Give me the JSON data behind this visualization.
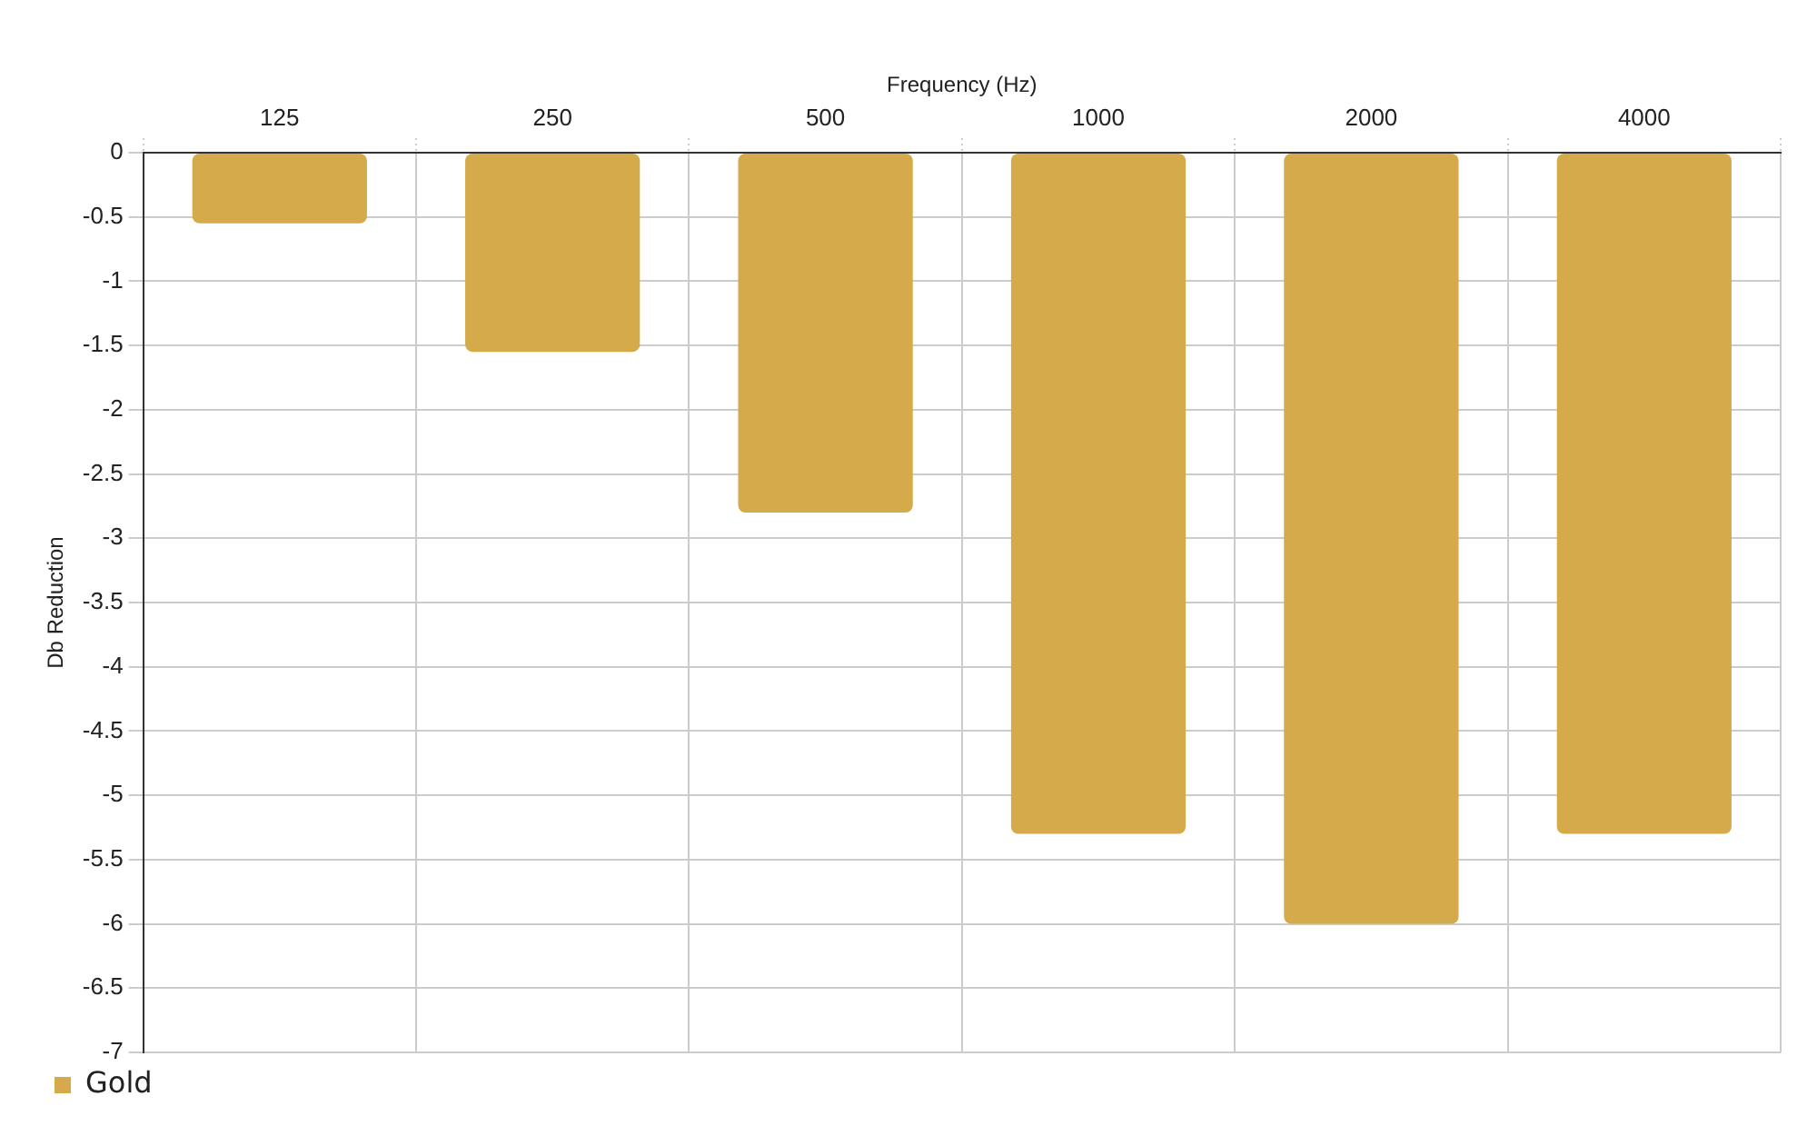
{
  "chart_data": {
    "type": "bar",
    "xlabel": "Frequency (Hz)",
    "ylabel": "Db Reduction",
    "categories": [
      "125",
      "250",
      "500",
      "1000",
      "2000",
      "4000"
    ],
    "series": [
      {
        "name": "Gold",
        "color": "#d4aa4a",
        "values": [
          -0.55,
          -1.55,
          -2.8,
          -5.3,
          -6,
          -5.3
        ]
      }
    ],
    "ylim": [
      -7,
      0
    ],
    "yticks": [
      0,
      -0.5,
      -1,
      -1.5,
      -2,
      -2.5,
      -3,
      -3.5,
      -4,
      -4.5,
      -5,
      -5.5,
      -6,
      -6.5,
      -7
    ],
    "grid": true,
    "legend": "bottom left"
  }
}
